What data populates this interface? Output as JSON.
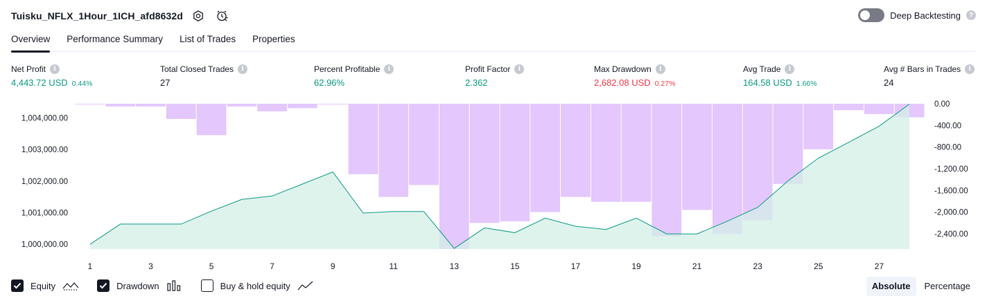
{
  "header": {
    "strategy_name": "Tuisku_NFLX_1Hour_1ICH_afd8632d",
    "icons": [
      "settings-icon",
      "alert-icon"
    ]
  },
  "deep_backtesting": {
    "label": "Deep Backtesting",
    "enabled": false
  },
  "tabs": [
    {
      "label": "Overview",
      "active": true
    },
    {
      "label": "Performance Summary",
      "active": false
    },
    {
      "label": "List of Trades",
      "active": false
    },
    {
      "label": "Properties",
      "active": false
    }
  ],
  "metrics": [
    {
      "label": "Net Profit",
      "value": "4,443.72 USD",
      "pct": "0.44%",
      "tone": "pos"
    },
    {
      "label": "Total Closed Trades",
      "value": "27",
      "pct": "",
      "tone": "plain"
    },
    {
      "label": "Percent Profitable",
      "value": "62.96%",
      "pct": "",
      "tone": "pos"
    },
    {
      "label": "Profit Factor",
      "value": "2.362",
      "pct": "",
      "tone": "pos"
    },
    {
      "label": "Max Drawdown",
      "value": "2,682.08 USD",
      "pct": "0.27%",
      "tone": "neg"
    },
    {
      "label": "Avg Trade",
      "value": "164.58 USD",
      "pct": "1.66%",
      "tone": "pos"
    },
    {
      "label": "Avg # Bars in Trades",
      "value": "24",
      "pct": "",
      "tone": "plain"
    }
  ],
  "chart_data": {
    "type": "area",
    "x": [
      1,
      2,
      3,
      4,
      5,
      6,
      7,
      8,
      9,
      10,
      11,
      12,
      13,
      14,
      15,
      16,
      17,
      18,
      19,
      20,
      21,
      22,
      23,
      24,
      25,
      26,
      27,
      28
    ],
    "x_ticks": [
      "1",
      "3",
      "5",
      "7",
      "9",
      "11",
      "13",
      "15",
      "17",
      "19",
      "21",
      "23",
      "25",
      "27"
    ],
    "equity": {
      "name": "Equity",
      "values": [
        1000000,
        1000640,
        1000640,
        1000640,
        1001050,
        1001420,
        1001530,
        1001910,
        1002290,
        1000990,
        1001040,
        1001040,
        999870,
        1000520,
        1000370,
        1000830,
        1000570,
        1000470,
        1000830,
        1000330,
        1000330,
        1000730,
        1001170,
        1002010,
        1002730,
        1003230,
        1003740,
        1004440
      ],
      "ylim": [
        999850,
        1004450
      ],
      "y_ticks": [
        "1,000,000.00",
        "1,001,000.00",
        "1,002,000.00",
        "1,003,000.00",
        "1,004,000.00"
      ],
      "color": "#089981",
      "fill": "#d4efe7"
    },
    "drawdown": {
      "name": "Drawdown",
      "values": [
        0,
        -50,
        -50,
        -280,
        -580,
        -50,
        -140,
        -80,
        0,
        -1300,
        -1720,
        -1500,
        -2682,
        -2200,
        -2170,
        -2000,
        -1720,
        -1810,
        -1810,
        -2450,
        -1960,
        -2400,
        -2150,
        -1480,
        -840,
        -120,
        -190,
        -250
      ],
      "ylim": [
        -2682.08,
        0
      ],
      "y_ticks": [
        "0.00",
        "-400.00",
        "-800.00",
        "-1,200.00",
        "-1,600.00",
        "-2,000.00",
        "-2,400.00"
      ],
      "color": "#b388ff",
      "fill": "#e3c7fd"
    }
  },
  "legend": [
    {
      "label": "Equity",
      "checked": true,
      "icon": "area-line-icon"
    },
    {
      "label": "Drawdown",
      "checked": true,
      "icon": "bars-icon"
    },
    {
      "label": "Buy & hold equity",
      "checked": false,
      "icon": "line-icon"
    }
  ],
  "mode_buttons": [
    {
      "label": "Absolute",
      "active": true
    },
    {
      "label": "Percentage",
      "active": false
    }
  ]
}
